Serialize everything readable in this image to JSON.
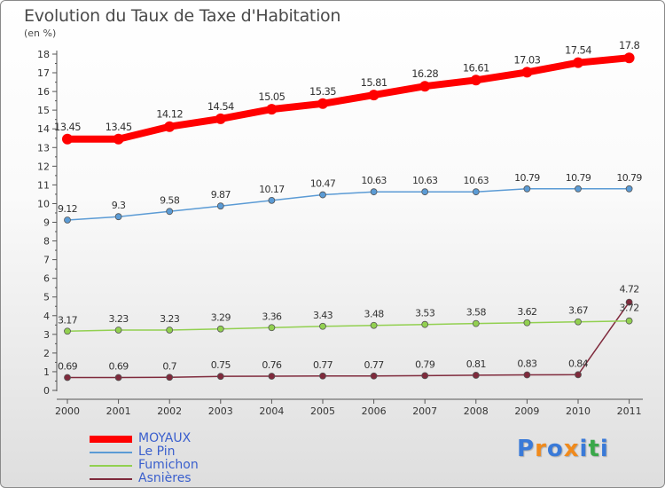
{
  "chart_data": {
    "type": "line",
    "title": "Evolution du Taux de Taxe d'Habitation",
    "subtitle": "(en %)",
    "x": [
      "2000",
      "2001",
      "2002",
      "2003",
      "2004",
      "2005",
      "2006",
      "2007",
      "2008",
      "2009",
      "2010",
      "2011"
    ],
    "ylim": [
      0,
      18
    ],
    "yticks": [
      "0",
      "1",
      "2",
      "3",
      "4",
      "5",
      "6",
      "7",
      "8",
      "9",
      "10",
      "11",
      "12",
      "13",
      "14",
      "15",
      "16",
      "17",
      "18"
    ],
    "grid": false,
    "legend_position": "bottom-left",
    "series": [
      {
        "name": "MOYAUX",
        "color": "#ff0000",
        "width": 8,
        "marker": 6,
        "values": [
          13.45,
          13.45,
          14.12,
          14.54,
          15.05,
          15.35,
          15.81,
          16.28,
          16.61,
          17.03,
          17.54,
          17.8
        ],
        "labels": [
          "13.45",
          "13.45",
          "14.12",
          "14.54",
          "15.05",
          "15.35",
          "15.81",
          "16.28",
          "16.61",
          "17.03",
          "17.54",
          "17.8"
        ]
      },
      {
        "name": "Le Pin",
        "color": "#5b9bd5",
        "width": 1.5,
        "marker": 3.5,
        "values": [
          9.12,
          9.3,
          9.58,
          9.87,
          10.17,
          10.47,
          10.63,
          10.63,
          10.63,
          10.79,
          10.79,
          10.79
        ],
        "labels": [
          "9.12",
          "9.3",
          "9.58",
          "9.87",
          "10.17",
          "10.47",
          "10.63",
          "10.63",
          "10.63",
          "10.79",
          "10.79",
          "10.79"
        ]
      },
      {
        "name": "Fumichon",
        "color": "#92d050",
        "width": 1.5,
        "marker": 3.5,
        "values": [
          3.17,
          3.23,
          3.23,
          3.29,
          3.36,
          3.43,
          3.48,
          3.53,
          3.58,
          3.62,
          3.67,
          3.72
        ],
        "labels": [
          "3.17",
          "3.23",
          "3.23",
          "3.29",
          "3.36",
          "3.43",
          "3.48",
          "3.53",
          "3.58",
          "3.62",
          "3.67",
          "3.72"
        ]
      },
      {
        "name": "Asnières",
        "color": "#7f2a3c",
        "width": 1.5,
        "marker": 3.5,
        "values": [
          0.69,
          0.69,
          0.7,
          0.75,
          0.76,
          0.77,
          0.77,
          0.79,
          0.81,
          0.83,
          0.84,
          4.72
        ],
        "labels": [
          "0.69",
          "0.69",
          "0.7",
          "0.75",
          "0.76",
          "0.77",
          "0.77",
          "0.79",
          "0.81",
          "0.83",
          "0.84",
          "4.72"
        ]
      }
    ]
  },
  "brand": {
    "letters": [
      "P",
      "r",
      "o",
      "x",
      "i",
      "t",
      "i"
    ],
    "colors": [
      "#3a7ad8",
      "#f08a1c",
      "#3a7ad8",
      "#f08a1c",
      "#3a7ad8",
      "#3aa84a",
      "#3a7ad8"
    ]
  }
}
